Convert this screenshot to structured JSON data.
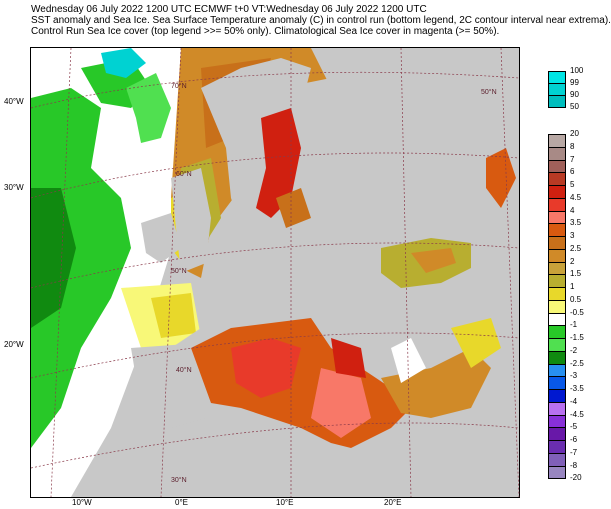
{
  "header": {
    "line1": "Wednesday 06 July 2022 1200 UTC   ECMWF  t+0  VT:Wednesday 06 July 2022 1200 UTC",
    "line2": "SST anomaly and Sea Ice. Sea Surface Temperature anomaly (C) in control run (bottom legend, 2C contour interval near extrema).",
    "line3": "Control Run Sea Ice cover (top legend >>= 50% only). Climatological Sea Ice cover in magenta (>= 50%)."
  },
  "map": {
    "outer_lat_labels": [
      "40°W",
      "30°W",
      "20°W"
    ],
    "lon_labels": [
      "10°W",
      "0°E",
      "10°E",
      "20°E"
    ],
    "inner_lat_labels": [
      "70°N",
      "60°N",
      "50°N",
      "40°N",
      "30°N",
      "50°N"
    ],
    "colors": {
      "land": "#c8c8c8",
      "ocean_neutral": "#ffffff",
      "coast": "#7a1630",
      "graticule": "#8a3a4a"
    }
  },
  "ice_legend": {
    "labels": [
      "100",
      "99",
      "90",
      "50"
    ],
    "colors": [
      "#00e5e5",
      "#00d2d2",
      "#00bebe"
    ]
  },
  "sst_legend": {
    "labels": [
      "20",
      "8",
      "7",
      "6",
      "5",
      "4.5",
      "4",
      "3.5",
      "3",
      "2.5",
      "2",
      "1.5",
      "1",
      "0.5",
      "-0.5",
      "-1",
      "-1.5",
      "-2",
      "-2.5",
      "-3",
      "-3.5",
      "-4",
      "-4.5",
      "-5",
      "-6",
      "-7",
      "-8",
      "-20"
    ],
    "colors": [
      "#b8a8a4",
      "#a88a86",
      "#a0605a",
      "#b83a24",
      "#d02010",
      "#e83a2a",
      "#f87868",
      "#d85a10",
      "#c8701a",
      "#d08a28",
      "#c8a23a",
      "#b8ae30",
      "#e8d82a",
      "#f8f878",
      "#ffffff",
      "#28c828",
      "#50e050",
      "#108a10",
      "#2890f0",
      "#0858e8",
      "#0018d0",
      "#b870f0",
      "#8830d8",
      "#6818a8",
      "#6a2eb0",
      "#8060b8",
      "#9886c0"
    ]
  }
}
